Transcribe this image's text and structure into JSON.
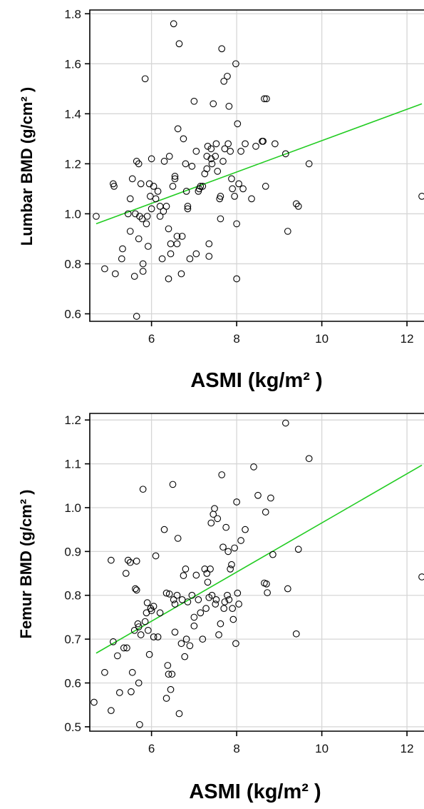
{
  "chart_data": [
    {
      "type": "scatter",
      "xlabel": "ASMI (kg/m²  )",
      "ylabel": "Lumbar BMD (g/cm² )",
      "xlim": [
        4.55,
        12.4
      ],
      "ylim": [
        0.57,
        1.815
      ],
      "xticks": [
        6,
        8,
        10,
        12
      ],
      "yticks": [
        0.6,
        0.8,
        1.0,
        1.2,
        1.4,
        1.6,
        1.8
      ],
      "ytick_labels": [
        "0.6",
        "0.8",
        "1.0",
        "1.2",
        "1.4",
        "1.6",
        "1.8"
      ],
      "grid": true,
      "colors": {
        "points": "#000000",
        "fit_line": "#22cc22",
        "grid": "#d6d6d6"
      },
      "fit_line": {
        "x": [
          4.7,
          12.35
        ],
        "y": [
          0.96,
          1.44
        ]
      },
      "points": [
        [
          4.7,
          0.99
        ],
        [
          4.9,
          0.78
        ],
        [
          5.1,
          1.12
        ],
        [
          5.12,
          1.11
        ],
        [
          5.15,
          0.76
        ],
        [
          5.3,
          0.82
        ],
        [
          5.32,
          0.86
        ],
        [
          5.45,
          1.0
        ],
        [
          5.5,
          0.93
        ],
        [
          5.5,
          1.06
        ],
        [
          5.55,
          1.14
        ],
        [
          5.6,
          0.75
        ],
        [
          5.62,
          1.0
        ],
        [
          5.65,
          0.59
        ],
        [
          5.65,
          1.21
        ],
        [
          5.7,
          1.2
        ],
        [
          5.7,
          0.9
        ],
        [
          5.72,
          0.99
        ],
        [
          5.75,
          1.12
        ],
        [
          5.78,
          0.98
        ],
        [
          5.8,
          0.77
        ],
        [
          5.8,
          0.8
        ],
        [
          5.85,
          1.54
        ],
        [
          5.88,
          0.96
        ],
        [
          5.9,
          0.99
        ],
        [
          5.92,
          0.87
        ],
        [
          5.95,
          1.12
        ],
        [
          5.97,
          1.07
        ],
        [
          6.0,
          1.02
        ],
        [
          6.0,
          1.22
        ],
        [
          6.05,
          1.11
        ],
        [
          6.1,
          1.06
        ],
        [
          6.15,
          1.09
        ],
        [
          6.2,
          0.99
        ],
        [
          6.2,
          1.03
        ],
        [
          6.25,
          0.82
        ],
        [
          6.28,
          1.01
        ],
        [
          6.3,
          1.21
        ],
        [
          6.35,
          1.03
        ],
        [
          6.4,
          0.94
        ],
        [
          6.4,
          0.74
        ],
        [
          6.42,
          1.23
        ],
        [
          6.45,
          0.88
        ],
        [
          6.45,
          0.84
        ],
        [
          6.5,
          1.11
        ],
        [
          6.52,
          1.76
        ],
        [
          6.55,
          1.15
        ],
        [
          6.55,
          1.14
        ],
        [
          6.6,
          0.91
        ],
        [
          6.6,
          0.88
        ],
        [
          6.62,
          1.34
        ],
        [
          6.65,
          1.68
        ],
        [
          6.7,
          0.76
        ],
        [
          6.72,
          0.91
        ],
        [
          6.75,
          1.3
        ],
        [
          6.8,
          1.2
        ],
        [
          6.82,
          1.09
        ],
        [
          6.85,
          1.02
        ],
        [
          6.85,
          1.03
        ],
        [
          6.9,
          0.82
        ],
        [
          6.95,
          1.19
        ],
        [
          7.0,
          1.45
        ],
        [
          7.05,
          1.25
        ],
        [
          7.05,
          0.84
        ],
        [
          7.1,
          1.09
        ],
        [
          7.12,
          1.1
        ],
        [
          7.15,
          1.11
        ],
        [
          7.2,
          1.11
        ],
        [
          7.25,
          1.16
        ],
        [
          7.3,
          1.18
        ],
        [
          7.3,
          1.23
        ],
        [
          7.32,
          1.27
        ],
        [
          7.35,
          0.83
        ],
        [
          7.35,
          0.88
        ],
        [
          7.4,
          1.22
        ],
        [
          7.4,
          1.26
        ],
        [
          7.42,
          1.2
        ],
        [
          7.45,
          1.44
        ],
        [
          7.5,
          1.23
        ],
        [
          7.52,
          1.28
        ],
        [
          7.55,
          1.17
        ],
        [
          7.6,
          1.06
        ],
        [
          7.62,
          1.07
        ],
        [
          7.62,
          0.98
        ],
        [
          7.65,
          1.66
        ],
        [
          7.68,
          1.21
        ],
        [
          7.7,
          1.53
        ],
        [
          7.72,
          1.26
        ],
        [
          7.78,
          1.55
        ],
        [
          7.8,
          1.28
        ],
        [
          7.82,
          1.43
        ],
        [
          7.85,
          1.25
        ],
        [
          7.88,
          1.14
        ],
        [
          7.9,
          1.1
        ],
        [
          7.95,
          1.07
        ],
        [
          7.98,
          1.6
        ],
        [
          8.0,
          0.74
        ],
        [
          8.0,
          0.96
        ],
        [
          8.02,
          1.36
        ],
        [
          8.05,
          1.12
        ],
        [
          8.1,
          1.25
        ],
        [
          8.15,
          1.1
        ],
        [
          8.2,
          1.28
        ],
        [
          8.35,
          1.06
        ],
        [
          8.45,
          1.27
        ],
        [
          8.6,
          1.29
        ],
        [
          8.62,
          1.29
        ],
        [
          8.65,
          1.46
        ],
        [
          8.68,
          1.11
        ],
        [
          8.7,
          1.46
        ],
        [
          8.9,
          1.28
        ],
        [
          9.15,
          1.24
        ],
        [
          9.2,
          0.93
        ],
        [
          9.4,
          1.04
        ],
        [
          9.45,
          1.03
        ],
        [
          9.7,
          1.2
        ],
        [
          12.35,
          1.07
        ]
      ]
    },
    {
      "type": "scatter",
      "xlabel": "ASMI (kg/m²  )",
      "ylabel": "Femur BMD (g/cm² )",
      "xlim": [
        4.55,
        12.4
      ],
      "ylim": [
        0.49,
        1.215
      ],
      "xticks": [
        6,
        8,
        10,
        12
      ],
      "yticks": [
        0.5,
        0.6,
        0.7,
        0.8,
        0.9,
        1.0,
        1.1,
        1.2
      ],
      "ytick_labels": [
        "0.5",
        "0.6",
        "0.7",
        "0.8",
        "0.9",
        "1.0",
        "1.1",
        "1.2"
      ],
      "grid": true,
      "colors": {
        "points": "#000000",
        "fit_line": "#22cc22",
        "grid": "#d6d6d6"
      },
      "fit_line": {
        "x": [
          4.7,
          12.35
        ],
        "y": [
          0.668,
          1.097
        ]
      },
      "points": [
        [
          4.65,
          0.556
        ],
        [
          4.9,
          0.624
        ],
        [
          5.05,
          0.537
        ],
        [
          5.05,
          0.88
        ],
        [
          5.1,
          0.694
        ],
        [
          5.2,
          0.662
        ],
        [
          5.25,
          0.578
        ],
        [
          5.35,
          0.68
        ],
        [
          5.4,
          0.85
        ],
        [
          5.42,
          0.68
        ],
        [
          5.45,
          0.88
        ],
        [
          5.5,
          0.875
        ],
        [
          5.52,
          0.58
        ],
        [
          5.55,
          0.624
        ],
        [
          5.6,
          0.72
        ],
        [
          5.62,
          0.815
        ],
        [
          5.65,
          0.812
        ],
        [
          5.65,
          0.878
        ],
        [
          5.68,
          0.735
        ],
        [
          5.7,
          0.728
        ],
        [
          5.7,
          0.6
        ],
        [
          5.72,
          0.505
        ],
        [
          5.75,
          0.71
        ],
        [
          5.8,
          1.042
        ],
        [
          5.85,
          0.74
        ],
        [
          5.88,
          0.76
        ],
        [
          5.9,
          0.783
        ],
        [
          5.92,
          0.72
        ],
        [
          5.95,
          0.665
        ],
        [
          5.98,
          0.77
        ],
        [
          6.0,
          0.765
        ],
        [
          6.05,
          0.775
        ],
        [
          6.05,
          0.705
        ],
        [
          6.1,
          0.89
        ],
        [
          6.15,
          0.705
        ],
        [
          6.2,
          0.76
        ],
        [
          6.3,
          0.95
        ],
        [
          6.35,
          0.805
        ],
        [
          6.35,
          0.565
        ],
        [
          6.38,
          0.64
        ],
        [
          6.4,
          0.62
        ],
        [
          6.42,
          0.803
        ],
        [
          6.45,
          0.585
        ],
        [
          6.48,
          0.62
        ],
        [
          6.5,
          1.053
        ],
        [
          6.52,
          0.79
        ],
        [
          6.55,
          0.78
        ],
        [
          6.55,
          0.716
        ],
        [
          6.6,
          0.8
        ],
        [
          6.62,
          0.93
        ],
        [
          6.65,
          0.53
        ],
        [
          6.7,
          0.69
        ],
        [
          6.72,
          0.79
        ],
        [
          6.75,
          0.845
        ],
        [
          6.78,
          0.66
        ],
        [
          6.8,
          0.86
        ],
        [
          6.82,
          0.7
        ],
        [
          6.85,
          0.785
        ],
        [
          6.9,
          0.685
        ],
        [
          6.95,
          0.8
        ],
        [
          7.0,
          0.75
        ],
        [
          7.0,
          0.73
        ],
        [
          7.05,
          0.846
        ],
        [
          7.1,
          0.79
        ],
        [
          7.15,
          0.76
        ],
        [
          7.2,
          0.7
        ],
        [
          7.25,
          0.86
        ],
        [
          7.28,
          0.77
        ],
        [
          7.3,
          0.85
        ],
        [
          7.32,
          0.83
        ],
        [
          7.35,
          0.795
        ],
        [
          7.38,
          0.86
        ],
        [
          7.4,
          0.965
        ],
        [
          7.42,
          0.8
        ],
        [
          7.45,
          0.985
        ],
        [
          7.48,
          0.998
        ],
        [
          7.5,
          0.78
        ],
        [
          7.52,
          0.79
        ],
        [
          7.55,
          0.975
        ],
        [
          7.58,
          0.71
        ],
        [
          7.62,
          0.735
        ],
        [
          7.65,
          1.075
        ],
        [
          7.68,
          0.91
        ],
        [
          7.7,
          0.77
        ],
        [
          7.72,
          0.785
        ],
        [
          7.75,
          0.955
        ],
        [
          7.78,
          0.8
        ],
        [
          7.8,
          0.9
        ],
        [
          7.82,
          0.79
        ],
        [
          7.85,
          0.86
        ],
        [
          7.88,
          0.87
        ],
        [
          7.9,
          0.77
        ],
        [
          7.92,
          0.745
        ],
        [
          7.95,
          0.908
        ],
        [
          7.98,
          0.69
        ],
        [
          8.0,
          1.013
        ],
        [
          8.02,
          0.805
        ],
        [
          8.05,
          0.78
        ],
        [
          8.1,
          0.925
        ],
        [
          8.2,
          0.95
        ],
        [
          8.4,
          1.093
        ],
        [
          8.5,
          1.028
        ],
        [
          8.65,
          0.828
        ],
        [
          8.68,
          0.99
        ],
        [
          8.7,
          0.826
        ],
        [
          8.72,
          0.806
        ],
        [
          8.8,
          1.022
        ],
        [
          8.85,
          0.893
        ],
        [
          9.15,
          1.193
        ],
        [
          9.2,
          0.815
        ],
        [
          9.4,
          0.712
        ],
        [
          9.45,
          0.905
        ],
        [
          9.7,
          1.112
        ],
        [
          12.35,
          0.842
        ]
      ]
    }
  ]
}
